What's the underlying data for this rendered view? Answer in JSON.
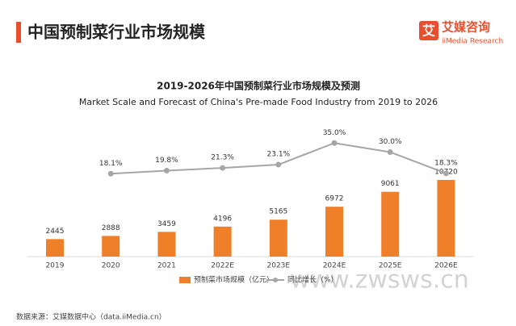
{
  "header": {
    "title": "中国预制菜行业市场规模",
    "logo_cn": "艾媒咨询",
    "logo_en": "iiMedia Research"
  },
  "chart_data": {
    "type": "bar",
    "title": "2019-2026年中国预制菜行业市场规模及预测",
    "subtitle": "Market Scale and Forecast of China's Pre-made Food Industry from 2019 to 2026",
    "categories": [
      "2019",
      "2020",
      "2021",
      "2022E",
      "2023E",
      "2024E",
      "2025E",
      "2026E"
    ],
    "series": [
      {
        "name": "预制菜市场规模（亿元）",
        "type": "bar",
        "color": "#f07f2a",
        "values": [
          2445,
          2888,
          3459,
          4196,
          5165,
          6972,
          9061,
          10720
        ]
      },
      {
        "name": "同比增长（%）",
        "type": "line",
        "axis": "y2",
        "color": "#a6a6a6",
        "values": [
          null,
          18.1,
          19.8,
          21.3,
          23.1,
          35.0,
          30.0,
          18.3
        ],
        "value_labels": [
          null,
          "18.1%",
          "19.8%",
          "21.3%",
          "23.1%",
          "35.0%",
          "30.0%",
          "18.3%"
        ]
      }
    ],
    "legend": "bottom"
  },
  "source": "数据来源：艾媒数据中心（data.iiMedia.cn）",
  "watermark": "www.zwsws.cn"
}
